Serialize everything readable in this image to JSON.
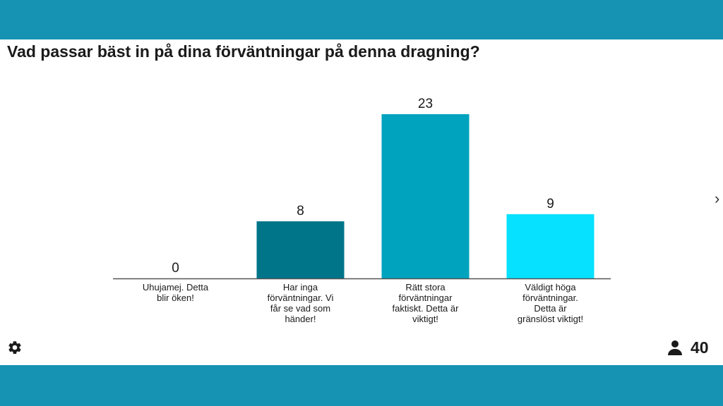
{
  "question": "Vad passar bäst in på dina förväntningar på denna dragning?",
  "participants": {
    "icon": "person-icon",
    "count": "40"
  },
  "settings": {
    "icon": "gear-icon"
  },
  "navigation": {
    "next_symbol": "›",
    "icon": "chevron-right-icon"
  },
  "colors": {
    "band": "#1692b2",
    "bars": [
      "#00829b",
      "#00758a",
      "#00a3be",
      "#05e1fe"
    ],
    "axis": "#555555",
    "text": "#1a1a1a"
  },
  "chart_data": {
    "type": "bar",
    "title": "Vad passar bäst in på dina förväntningar på denna dragning?",
    "categories": [
      [
        "Uhujamej. Detta",
        "blir öken!"
      ],
      [
        "Har inga",
        "förväntningar. Vi",
        "får se vad som",
        "händer!"
      ],
      [
        "Rätt stora",
        "förväntningar",
        "faktiskt. Detta är",
        "viktigt!"
      ],
      [
        "Väldigt höga",
        "förväntningar.",
        "Detta är",
        "gränslöst viktigt!"
      ]
    ],
    "values": [
      0,
      8,
      23,
      9
    ],
    "ylim": [
      0,
      23
    ],
    "grid": false,
    "legend": "none"
  }
}
